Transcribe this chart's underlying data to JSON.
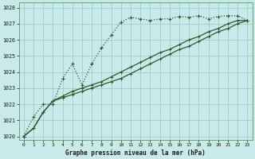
{
  "title": "Graphe pression niveau de la mer (hPa)",
  "bg_color": "#c8eae8",
  "grid_color": "#90c8c8",
  "line_color": "#2d5a2d",
  "xlim": [
    -0.5,
    23.5
  ],
  "ylim": [
    1019.8,
    1028.3
  ],
  "yticks": [
    1020,
    1021,
    1022,
    1023,
    1024,
    1025,
    1026,
    1027,
    1028
  ],
  "xticks": [
    0,
    1,
    2,
    3,
    4,
    5,
    6,
    7,
    8,
    9,
    10,
    11,
    12,
    13,
    14,
    15,
    16,
    17,
    18,
    19,
    20,
    21,
    22,
    23
  ],
  "series1": [
    1020.0,
    1021.2,
    1022.0,
    1022.0,
    1023.6,
    1024.5,
    1023.2,
    1024.5,
    1025.5,
    1026.3,
    1027.1,
    1027.4,
    1027.3,
    1027.2,
    1027.3,
    1027.3,
    1027.45,
    1027.4,
    1027.5,
    1027.3,
    1027.45,
    1027.5,
    1027.5,
    1027.2
  ],
  "series2": [
    1020.0,
    1020.5,
    1021.5,
    1022.2,
    1022.4,
    1022.6,
    1022.8,
    1023.0,
    1023.2,
    1023.4,
    1023.6,
    1023.9,
    1024.2,
    1024.5,
    1024.8,
    1025.1,
    1025.4,
    1025.6,
    1025.9,
    1026.2,
    1026.5,
    1026.7,
    1027.0,
    1027.2
  ],
  "series3": [
    1020.0,
    1020.5,
    1021.5,
    1022.2,
    1022.5,
    1022.8,
    1023.0,
    1023.2,
    1023.4,
    1023.7,
    1024.0,
    1024.3,
    1024.6,
    1024.9,
    1025.2,
    1025.4,
    1025.7,
    1026.0,
    1026.2,
    1026.5,
    1026.7,
    1027.0,
    1027.2,
    1027.2
  ]
}
